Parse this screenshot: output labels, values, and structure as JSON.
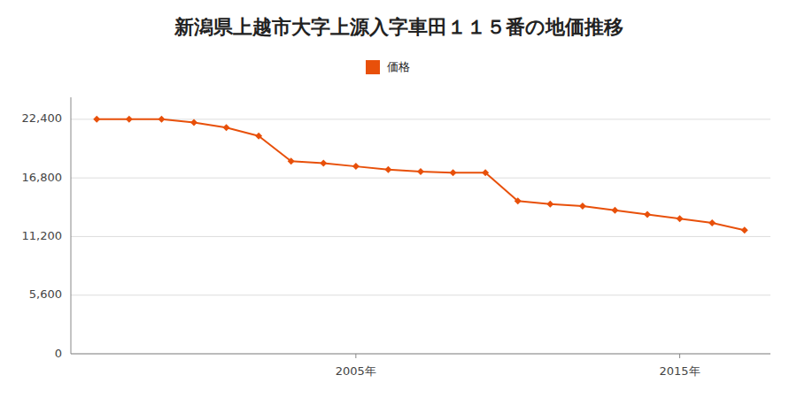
{
  "chart_data": {
    "type": "line",
    "title": "新潟県上越市大字上源入字車田１１５番の地価推移",
    "x": [
      1997,
      1998,
      1999,
      2000,
      2001,
      2002,
      2003,
      2004,
      2005,
      2006,
      2007,
      2008,
      2009,
      2010,
      2011,
      2012,
      2013,
      2014,
      2015,
      2016,
      2017
    ],
    "series": [
      {
        "name": "価格",
        "color": "#e8500a",
        "marker": "diamond",
        "values": [
          22400,
          22400,
          22400,
          22100,
          21600,
          20800,
          18400,
          18200,
          17900,
          17600,
          17400,
          17300,
          17300,
          14600,
          14300,
          14100,
          13700,
          13300,
          12900,
          12500,
          11800
        ]
      }
    ],
    "xlim": [
      1996.2,
      2017.8
    ],
    "xticks": [
      {
        "value": 2005,
        "label": "2005年"
      },
      {
        "value": 2015,
        "label": "2015年"
      }
    ],
    "ylim": [
      0,
      24500
    ],
    "yticks": [
      0,
      {
        "value": 5600,
        "label": "5,600"
      },
      {
        "value": 11200,
        "label": "11,200"
      },
      {
        "value": 16800,
        "label": "16,800"
      },
      {
        "value": 22400,
        "label": "22,400"
      }
    ],
    "grid": "y",
    "legend": "top"
  }
}
